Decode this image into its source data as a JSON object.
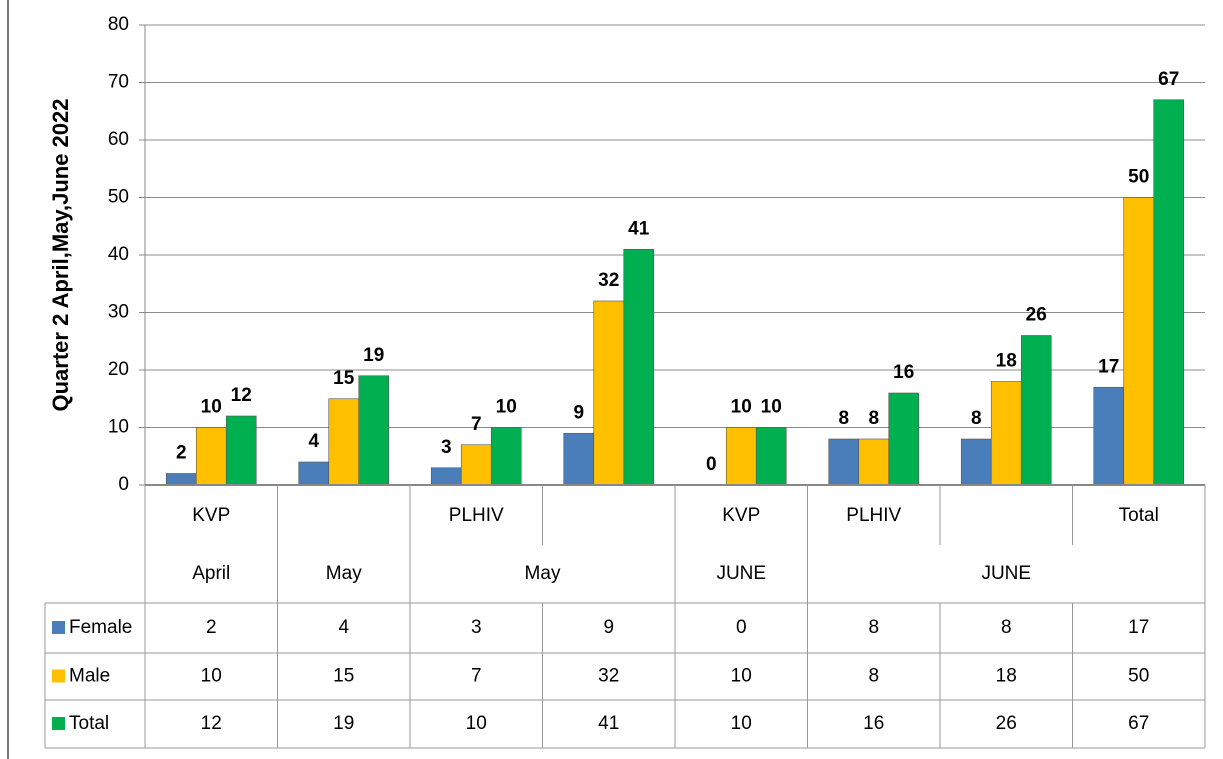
{
  "chart_data": {
    "type": "bar",
    "y_axis_label": "Quarter 2 April,May,June 2022",
    "categories": [
      "KVP",
      null,
      "PLHIV",
      null,
      "KVP",
      "PLHIV",
      null,
      "Total"
    ],
    "category_groups": [
      {
        "label": "April",
        "size": 1
      },
      {
        "label": "May",
        "size": 1
      },
      {
        "label": "May",
        "size": 2
      },
      {
        "label": "JUNE",
        "size": 1
      },
      {
        "label": "JUNE",
        "size": 3
      }
    ],
    "series": [
      {
        "name": "Female",
        "color": "#4a7ebb",
        "values": [
          2,
          4,
          3,
          9,
          0,
          8,
          8,
          17
        ]
      },
      {
        "name": "Male",
        "color": "#ffc000",
        "values": [
          10,
          15,
          7,
          32,
          10,
          8,
          18,
          50
        ]
      },
      {
        "name": "Total",
        "color": "#00b050",
        "values": [
          12,
          19,
          10,
          41,
          10,
          16,
          26,
          67
        ]
      }
    ],
    "ylim": [
      0,
      80
    ],
    "yticks": [
      0,
      10,
      20,
      30,
      40,
      50,
      60,
      70,
      80
    ],
    "grid": true,
    "data_table": true
  }
}
